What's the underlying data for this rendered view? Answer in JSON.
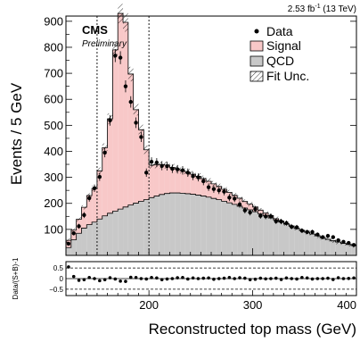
{
  "chart_data": [
    {
      "type": "histogram",
      "xlabel": "Reconstructed top mass (GeV)",
      "ylabel": "Events / 5 GeV",
      "xlim": [
        120,
        400
      ],
      "ylim": [
        0,
        920
      ],
      "x_ticks": [
        "200",
        "300",
        "400"
      ],
      "y_ticks": [
        "100",
        "200",
        "300",
        "400",
        "500",
        "600",
        "700",
        "800",
        "900"
      ],
      "bin_width": 5,
      "x": [
        122.5,
        127.5,
        132.5,
        137.5,
        142.5,
        147.5,
        152.5,
        157.5,
        162.5,
        167.5,
        172.5,
        177.5,
        182.5,
        187.5,
        192.5,
        197.5,
        202.5,
        207.5,
        212.5,
        217.5,
        222.5,
        227.5,
        232.5,
        237.5,
        242.5,
        247.5,
        252.5,
        257.5,
        262.5,
        267.5,
        272.5,
        277.5,
        282.5,
        287.5,
        292.5,
        297.5,
        302.5,
        307.5,
        312.5,
        317.5,
        322.5,
        327.5,
        332.5,
        337.5,
        342.5,
        347.5,
        352.5,
        357.5,
        362.5,
        367.5,
        372.5,
        377.5,
        382.5,
        387.5,
        392.5,
        397.5
      ],
      "series": [
        {
          "name": "QCD",
          "type": "stacked-area",
          "color": "#c8c8c8",
          "values": [
            30,
            60,
            85,
            105,
            118,
            128,
            140,
            152,
            162,
            170,
            178,
            186,
            194,
            201,
            208,
            214,
            222,
            228,
            234,
            238,
            240,
            240,
            239,
            237,
            235,
            232,
            228,
            224,
            219,
            214,
            208,
            202,
            196,
            189,
            182,
            175,
            168,
            160,
            152,
            144,
            136,
            128,
            120,
            112,
            104,
            96,
            89,
            82,
            75,
            68,
            62,
            56,
            51,
            46,
            42,
            38
          ]
        },
        {
          "name": "Signal",
          "type": "stacked-area",
          "color": "#f8c8c8",
          "values": [
            28,
            37,
            54,
            80,
            112,
            130,
            185,
            262,
            363,
            620,
            752,
            710,
            503,
            359,
            275,
            192,
            125,
            121,
            115,
            109,
            98,
            92,
            86,
            82,
            77,
            72,
            67,
            61,
            56,
            51,
            46,
            40,
            35,
            31,
            25,
            22,
            18,
            14,
            11,
            9,
            5,
            4,
            2,
            1,
            0,
            0,
            0,
            0,
            0,
            0,
            0,
            0,
            0,
            0,
            0,
            0
          ]
        },
        {
          "name": "Data",
          "type": "points",
          "color": "#000000",
          "values": [
            45,
            85,
            112,
            155,
            220,
            258,
            302,
            395,
            519,
            768,
            760,
            650,
            590,
            510,
            455,
            318,
            360,
            357,
            344,
            343,
            333,
            331,
            327,
            318,
            305,
            300,
            285,
            262,
            255,
            250,
            245,
            222,
            218,
            196,
            173,
            165,
            178,
            152,
            150,
            150,
            131,
            130,
            124,
            110,
            108,
            95,
            90,
            90,
            80,
            70,
            75,
            70,
            58,
            52,
            48,
            40
          ]
        }
      ],
      "ratio_panel": {
        "ylabel": "Data/(S+B)-1",
        "ylim": [
          -0.8,
          0.8
        ],
        "y_ticks": [
          "0.5",
          "0",
          "−0.5"
        ],
        "values": [
          0.55,
          0.1,
          -0.08,
          -0.05,
          0.05,
          0.0,
          -0.1,
          -0.05,
          0.04,
          -0.02,
          -0.12,
          -0.13,
          0.06,
          0.05,
          0.0,
          -0.02,
          0.05,
          0.03,
          -0.05,
          -0.02,
          0.0,
          0.04,
          0.05,
          -0.02,
          0.03,
          0.0,
          0.02,
          0.03,
          -0.03,
          0.0,
          0.02,
          0.05,
          0.0,
          0.04,
          0.02,
          -0.05,
          -0.03,
          0.02,
          -0.01,
          0.0,
          0.02,
          -0.04,
          0.03,
          0.0,
          -0.02,
          0.05,
          0.03,
          -0.02,
          0.0,
          0.0,
          0.02,
          -0.04,
          0.04,
          0.0,
          0.01,
          0.03
        ]
      },
      "vertical_lines_x": [
        150,
        200
      ],
      "legend": {
        "position": "top-right",
        "entries": [
          "Data",
          "Signal",
          "QCD",
          "Fit Unc."
        ]
      },
      "annotations": {
        "experiment": "CMS",
        "status": "Preliminary",
        "luminosity": "2.53 fb",
        "lumi_exponent": "-1",
        "energy": " (13 TeV)"
      }
    }
  ]
}
